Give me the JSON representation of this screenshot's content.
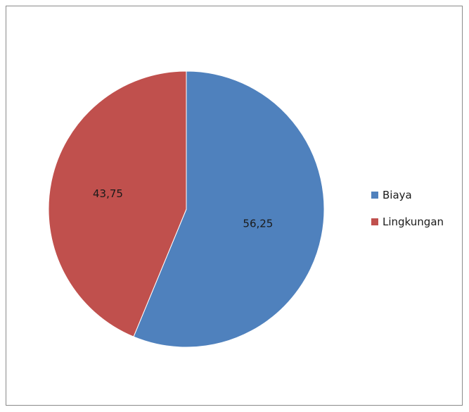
{
  "chart_data": {
    "type": "pie",
    "categories": [
      "Biaya",
      "Lingkungan"
    ],
    "values": [
      56.25,
      43.75
    ],
    "data_labels": [
      "56,25",
      "43,75"
    ],
    "colors": [
      "#4F81BD",
      "#C0504D"
    ],
    "title": "",
    "legend_position": "right",
    "start_angle": "12-o'clock",
    "direction": "clockwise"
  }
}
